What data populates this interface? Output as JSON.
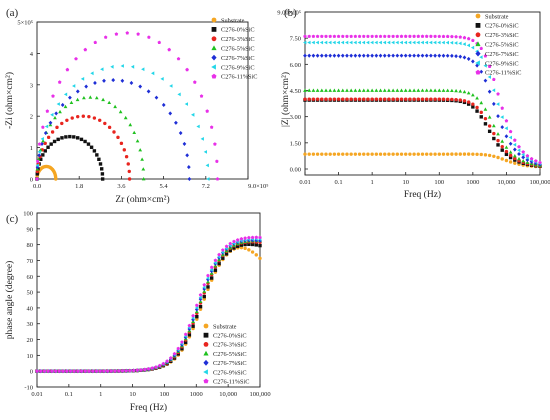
{
  "colors": {
    "Substrate": "#f5a623",
    "C276-0%SiC": "#111111",
    "C276-3%SiC": "#e8251f",
    "C276-5%SiC": "#1fc11f",
    "C276-7%SiC": "#1f2fd6",
    "C276-9%SiC": "#22d6e8",
    "C276-11%SiC": "#e830e8"
  },
  "chart_data": [
    {
      "panel": "(a)",
      "type": "scatter",
      "xlabel": "Zr (ohm×cm²)",
      "ylabel": "-Zi (ohm×cm²)",
      "xticks": [
        "0.0",
        "1.8",
        "3.6",
        "5.4",
        "7.2",
        "9.0×10⁵"
      ],
      "yticks": [
        "0",
        "1",
        "2",
        "3",
        "4",
        "5×10⁵"
      ],
      "xlim": [
        0,
        9.0
      ],
      "ylim": [
        0,
        5.0
      ],
      "scale_note": "values ×10⁵",
      "series": [
        {
          "name": "Substrate",
          "marker": "circle",
          "diameter": 0.8,
          "peak": 0.4
        },
        {
          "name": "C276-0%SiC",
          "marker": "square",
          "diameter": 2.8,
          "peak": 1.35
        },
        {
          "name": "C276-3%SiC",
          "marker": "circle",
          "diameter": 3.95,
          "peak": 2.0
        },
        {
          "name": "C276-5%SiC",
          "marker": "triangle",
          "diameter": 4.55,
          "peak": 2.6
        },
        {
          "name": "C276-7%SiC",
          "marker": "diamond",
          "diameter": 6.5,
          "peak": 3.15
        },
        {
          "name": "C276-9%SiC",
          "marker": "triangle-left",
          "diameter": 7.3,
          "peak": 3.6
        },
        {
          "name": "C276-11%SiC",
          "marker": "pentagon",
          "diameter": 7.7,
          "peak": 4.65
        }
      ]
    },
    {
      "panel": "(b)",
      "type": "scatter",
      "xlabel": "Freq (Hz)",
      "ylabel": "|Z| (ohm×cm²)",
      "xscale": "log",
      "xticks": [
        "0.01",
        "0.1",
        "1",
        "10",
        "100",
        "1000",
        "10,000",
        "100,000"
      ],
      "yticks": [
        "0.00",
        "1.50",
        "3.00",
        "4.50",
        "6.00",
        "7.50",
        "9.00×10⁵"
      ],
      "xlim": [
        0.01,
        100000
      ],
      "ylim": [
        0,
        9.0
      ],
      "scale_note": "values ×10⁵",
      "series": [
        {
          "name": "Substrate",
          "low_freq_modulus": 0.85,
          "corner_hz": 6000
        },
        {
          "name": "C276-0%SiC",
          "low_freq_modulus": 3.95,
          "corner_hz": 2000
        },
        {
          "name": "C276-3%SiC",
          "low_freq_modulus": 4.0,
          "corner_hz": 2400
        },
        {
          "name": "C276-5%SiC",
          "low_freq_modulus": 4.5,
          "corner_hz": 2700
        },
        {
          "name": "C276-7%SiC",
          "low_freq_modulus": 6.5,
          "corner_hz": 2900
        },
        {
          "name": "C276-9%SiC",
          "low_freq_modulus": 7.25,
          "corner_hz": 3300
        },
        {
          "name": "C276-11%SiC",
          "low_freq_modulus": 7.6,
          "corner_hz": 3800
        }
      ]
    },
    {
      "panel": "(c)",
      "type": "scatter",
      "xlabel": "Freq (Hz)",
      "ylabel": "phase angle (degree)",
      "xscale": "log",
      "xticks": [
        "0.01",
        "0.1",
        "1",
        "10",
        "100",
        "1000",
        "10,000",
        "100,000"
      ],
      "yticks": [
        "-10",
        "0",
        "10",
        "20",
        "30",
        "40",
        "50",
        "60",
        "70",
        "80",
        "90",
        "100"
      ],
      "xlim": [
        0.01,
        100000
      ],
      "ylim": [
        -10,
        100
      ],
      "series": [
        {
          "name": "Substrate",
          "plateau_deg": 83,
          "end_deg": 72,
          "mid_hz": 1500
        },
        {
          "name": "C276-0%SiC",
          "plateau_deg": 83,
          "end_deg": 80,
          "mid_hz": 1400
        },
        {
          "name": "C276-3%SiC",
          "plateau_deg": 84,
          "end_deg": 82,
          "mid_hz": 1300
        },
        {
          "name": "C276-5%SiC",
          "plateau_deg": 84,
          "end_deg": 83,
          "mid_hz": 1250
        },
        {
          "name": "C276-7%SiC",
          "plateau_deg": 85,
          "end_deg": 83,
          "mid_hz": 1200
        },
        {
          "name": "C276-9%SiC",
          "plateau_deg": 85,
          "end_deg": 84,
          "mid_hz": 1150
        },
        {
          "name": "C276-11%SiC",
          "plateau_deg": 86,
          "end_deg": 85,
          "mid_hz": 1100
        }
      ]
    }
  ]
}
